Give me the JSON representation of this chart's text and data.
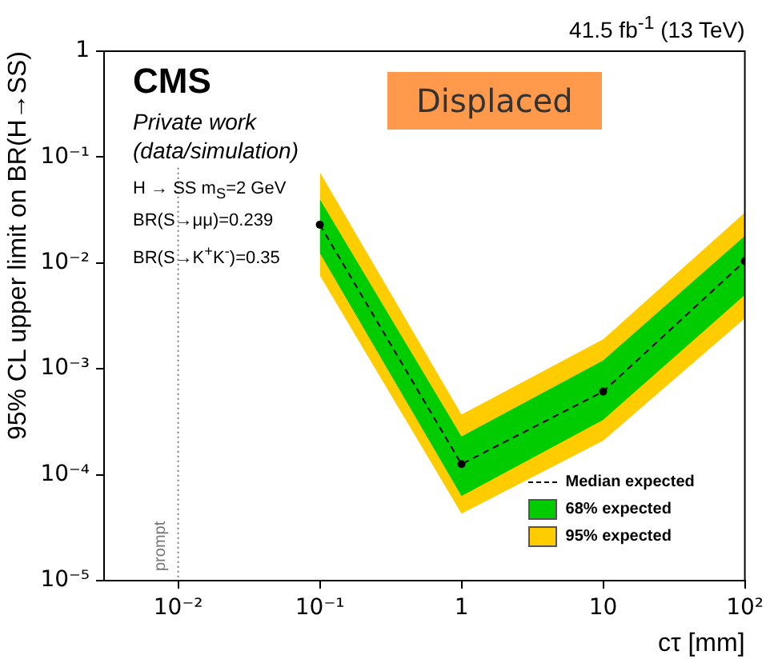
{
  "chart_data": {
    "type": "line",
    "xlabel": "cτ [mm]",
    "ylabel": "95% CL upper limit on BR(H→SS)",
    "log": "xy",
    "xlim": [
      0.003,
      100
    ],
    "ylim": [
      1e-05,
      1
    ],
    "xticks": [
      {
        "value": 0.01,
        "label": "10⁻²"
      },
      {
        "value": 0.1,
        "label": "10⁻¹"
      },
      1,
      10,
      {
        "value": 100,
        "label": "10²"
      }
    ],
    "yticks": [
      {
        "value": 1e-05,
        "label": "10⁻⁵"
      },
      {
        "value": 0.0001,
        "label": "10⁻⁴"
      },
      {
        "value": 0.001,
        "label": "10⁻³"
      },
      {
        "value": 0.01,
        "label": "10⁻²"
      },
      {
        "value": 0.1,
        "label": "10⁻¹"
      },
      1
    ],
    "x": [
      0.1,
      1,
      10,
      100
    ],
    "series": [
      {
        "name": "95% expected",
        "type": "line",
        "color": "#ffcc00",
        "values": [
          null,
          null,
          null,
          null
        ],
        "lower": [
          0.0076,
          4.3e-05,
          0.00021,
          0.003
        ],
        "upper": [
          0.072,
          0.00037,
          0.0019,
          0.03
        ]
      },
      {
        "name": "68% expected",
        "type": "line",
        "color": "#00cc00",
        "values": [
          null,
          null,
          null,
          null
        ],
        "lower": [
          0.0124,
          6.3e-05,
          0.00033,
          0.005
        ],
        "upper": [
          0.04,
          0.00023,
          0.0012,
          0.018
        ]
      },
      {
        "name": "Median expected",
        "type": "line",
        "color": "#000000",
        "values": [
          0.023,
          0.000126,
          0.00061,
          0.0104
        ],
        "marker": "circle",
        "line_style": "dashed"
      }
    ],
    "ref_lines": [
      {
        "axis": "x",
        "value": 0.01,
        "label": "prompt",
        "color": "#777777",
        "line_style": "dotted"
      }
    ],
    "legend": "bottom right",
    "grid": false,
    "annotations": [
      "41.5 fb$^{-1}$ (13 TeV)",
      "CMS",
      "Private work",
      "(data/simulation)",
      "H → SS m$_{S}$=2 GeV",
      "BR(S→μμ)=0.239",
      "BR(S→K$^{+}$K$^{-}$)=0.35",
      "Displaced"
    ]
  }
}
